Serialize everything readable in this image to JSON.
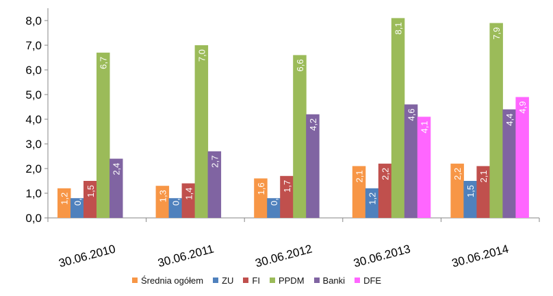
{
  "chart_data": {
    "type": "bar",
    "categories": [
      "30.06.2010",
      "30.06.2011",
      "30.06.2012",
      "30.06.2013",
      "30.06.2014"
    ],
    "series": [
      {
        "name": "Średnia ogółem",
        "color": "#F79646",
        "values": [
          1.2,
          1.3,
          1.6,
          2.1,
          2.2
        ]
      },
      {
        "name": "ZU",
        "color": "#4F81BD",
        "values": [
          0.8,
          0.8,
          0.8,
          1.2,
          1.5
        ]
      },
      {
        "name": "FI",
        "color": "#C0504D",
        "values": [
          1.5,
          1.4,
          1.7,
          2.2,
          2.1
        ]
      },
      {
        "name": "PPDM",
        "color": "#9BBB59",
        "values": [
          6.7,
          7.0,
          6.6,
          8.1,
          7.9
        ]
      },
      {
        "name": "Banki",
        "color": "#8064A2",
        "values": [
          2.4,
          2.7,
          4.2,
          4.6,
          4.4
        ]
      },
      {
        "name": "DFE",
        "color": "#FF66FF",
        "values": [
          null,
          null,
          null,
          4.1,
          4.9
        ]
      }
    ],
    "y_ticks": [
      "0,0",
      "1,0",
      "2,0",
      "3,0",
      "4,0",
      "5,0",
      "6,0",
      "7,0",
      "8,0"
    ],
    "ylim": [
      0,
      8.5
    ],
    "grid": false,
    "legend_position": "bottom",
    "title": "",
    "xlabel": "",
    "ylabel": ""
  }
}
